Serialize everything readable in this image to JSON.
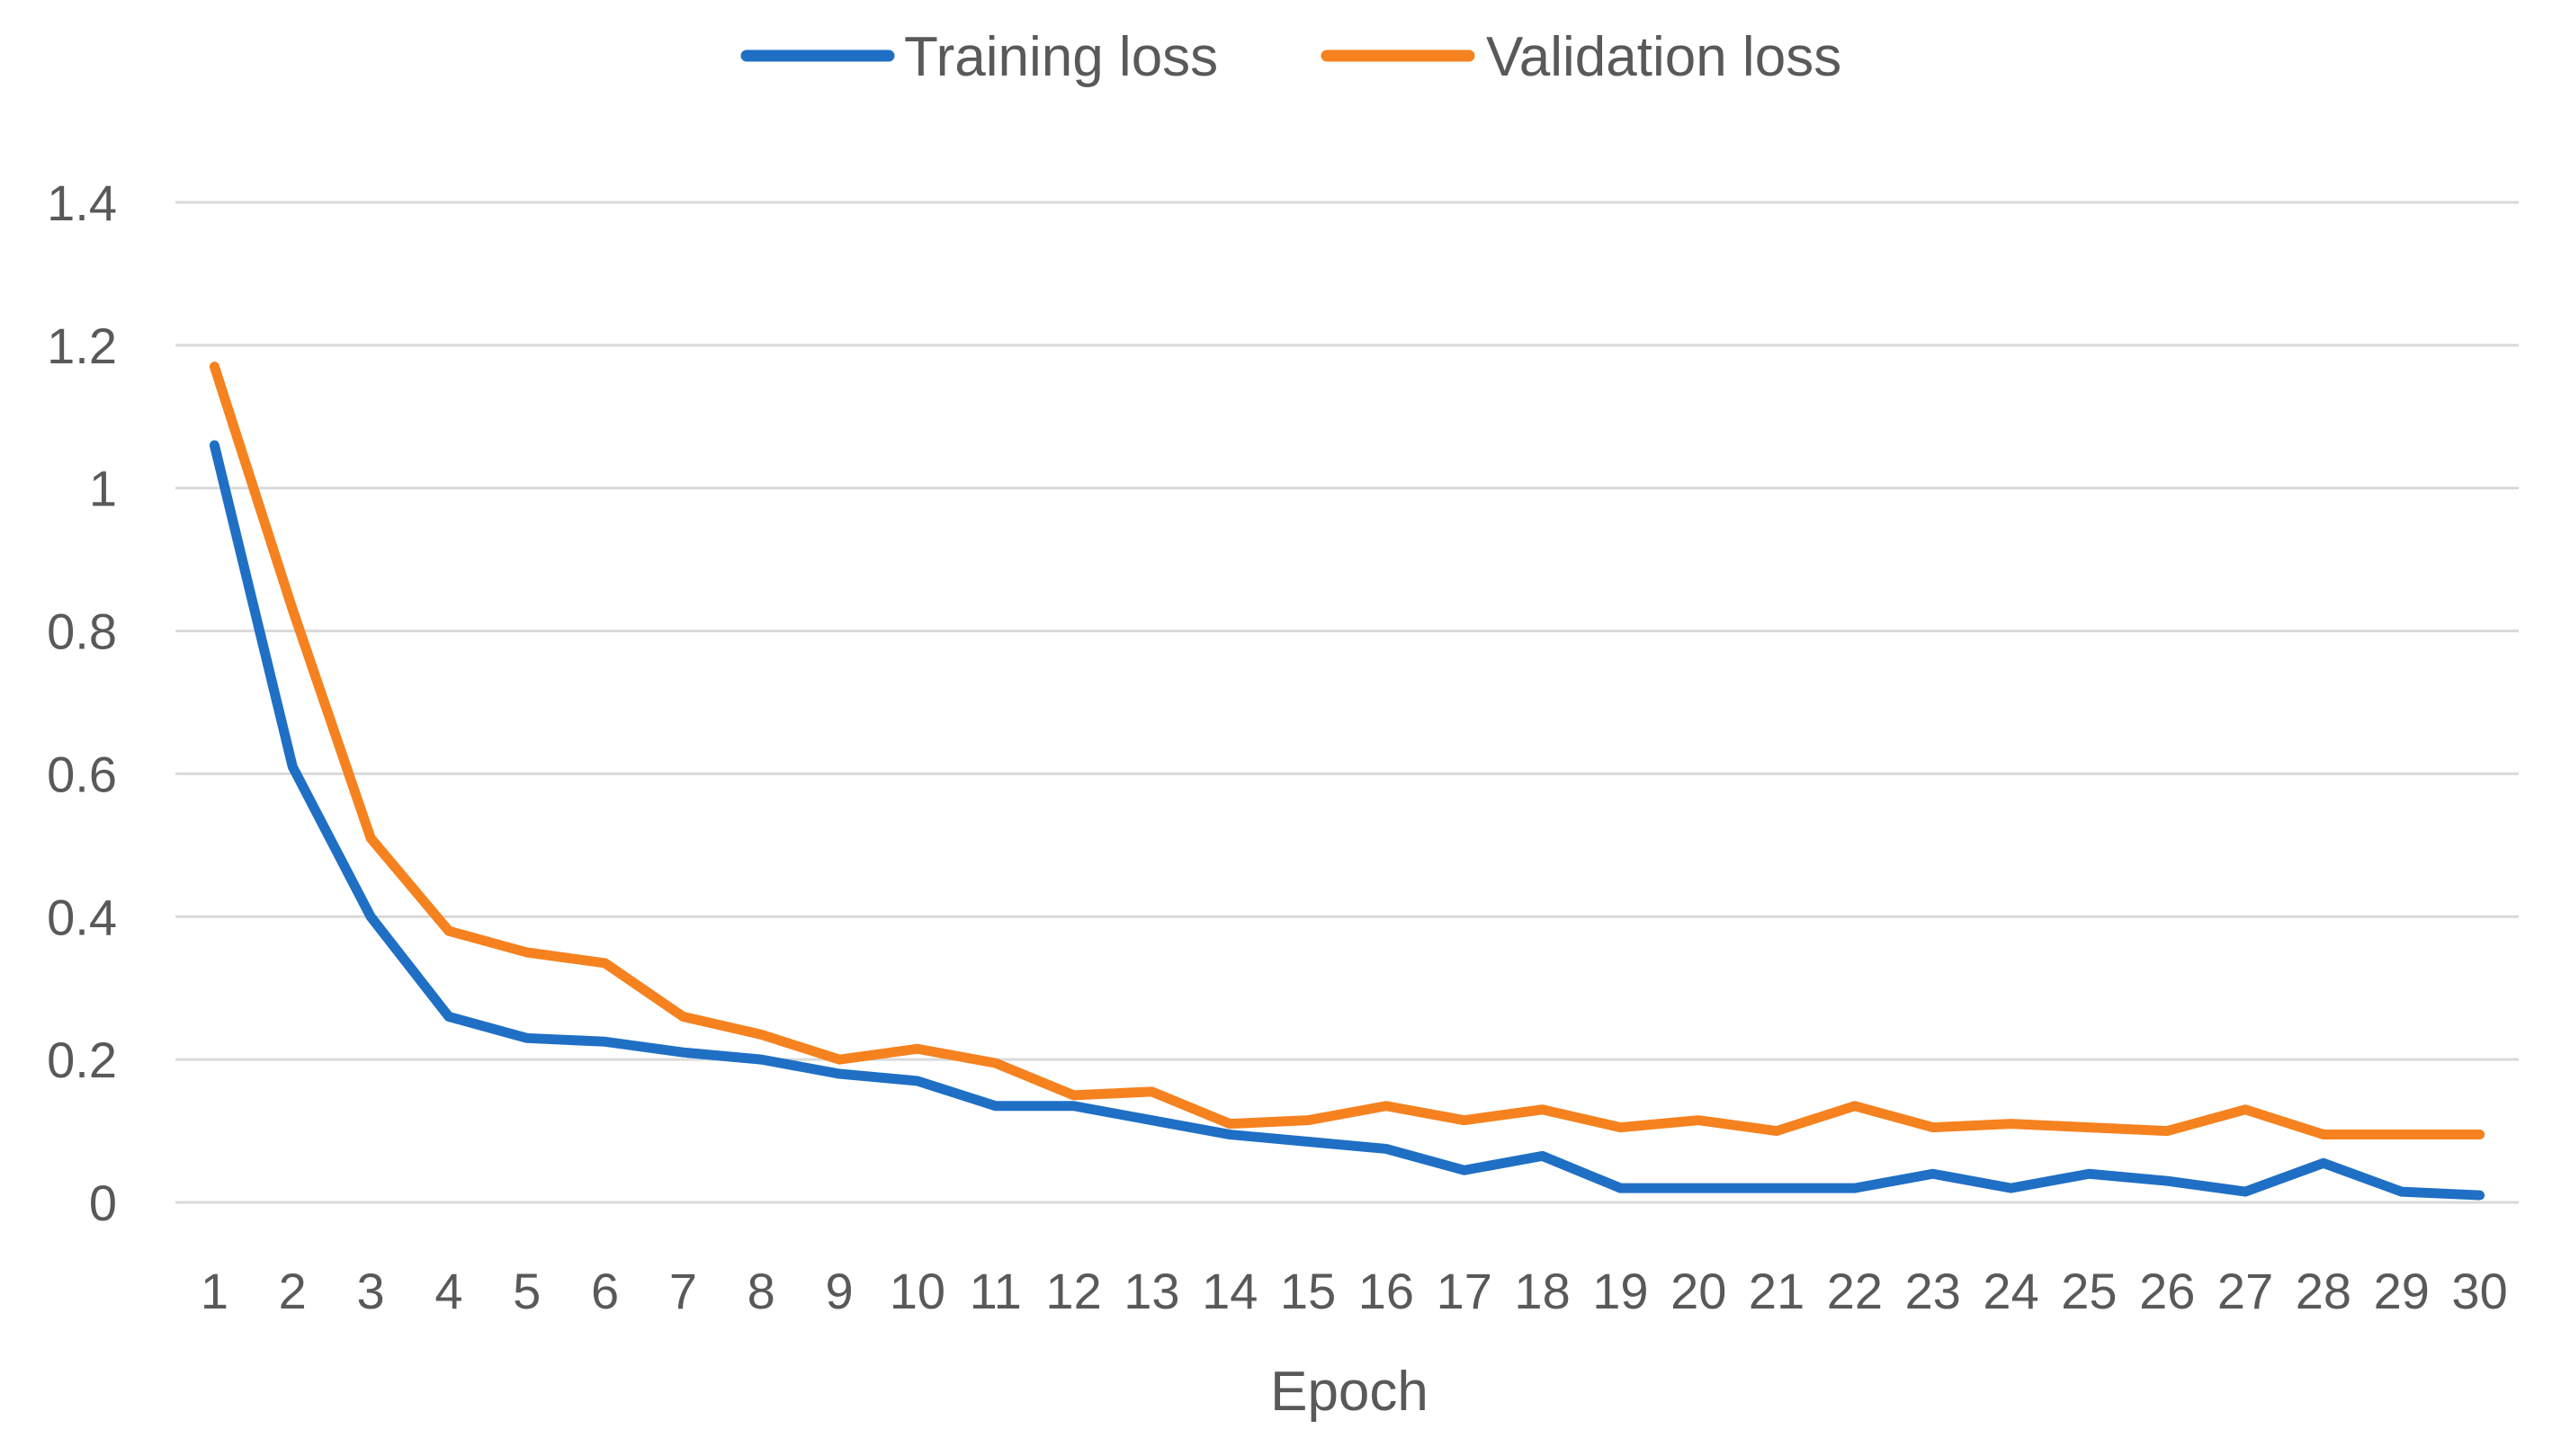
{
  "chart_data": {
    "type": "line",
    "title": "",
    "xlabel": "Epoch",
    "ylabel": "",
    "categories": [
      "1",
      "2",
      "3",
      "4",
      "5",
      "6",
      "7",
      "8",
      "9",
      "10",
      "11",
      "12",
      "13",
      "14",
      "15",
      "16",
      "17",
      "18",
      "19",
      "20",
      "21",
      "22",
      "23",
      "24",
      "25",
      "26",
      "27",
      "28",
      "29",
      "30"
    ],
    "ylim": [
      0,
      1.4
    ],
    "yticks": [
      "0",
      "0.2",
      "0.4",
      "0.6",
      "0.8",
      "1",
      "1.2",
      "1.4"
    ],
    "grid": true,
    "legend_position": "top",
    "series": [
      {
        "name": "Training loss",
        "color": "#1f6fc5",
        "values": [
          1.06,
          0.61,
          0.4,
          0.26,
          0.23,
          0.225,
          0.21,
          0.2,
          0.18,
          0.17,
          0.135,
          0.135,
          0.115,
          0.095,
          0.085,
          0.075,
          0.045,
          0.065,
          0.02,
          0.02,
          0.02,
          0.02,
          0.04,
          0.02,
          0.04,
          0.03,
          0.015,
          0.055,
          0.015,
          0.01
        ]
      },
      {
        "name": "Validation loss",
        "color": "#f5821f",
        "values": [
          1.17,
          0.83,
          0.51,
          0.38,
          0.35,
          0.335,
          0.26,
          0.235,
          0.2,
          0.215,
          0.195,
          0.15,
          0.155,
          0.11,
          0.115,
          0.135,
          0.115,
          0.13,
          0.105,
          0.115,
          0.1,
          0.135,
          0.105,
          0.11,
          0.105,
          0.1,
          0.13,
          0.095,
          0.095,
          0.095
        ]
      }
    ]
  }
}
